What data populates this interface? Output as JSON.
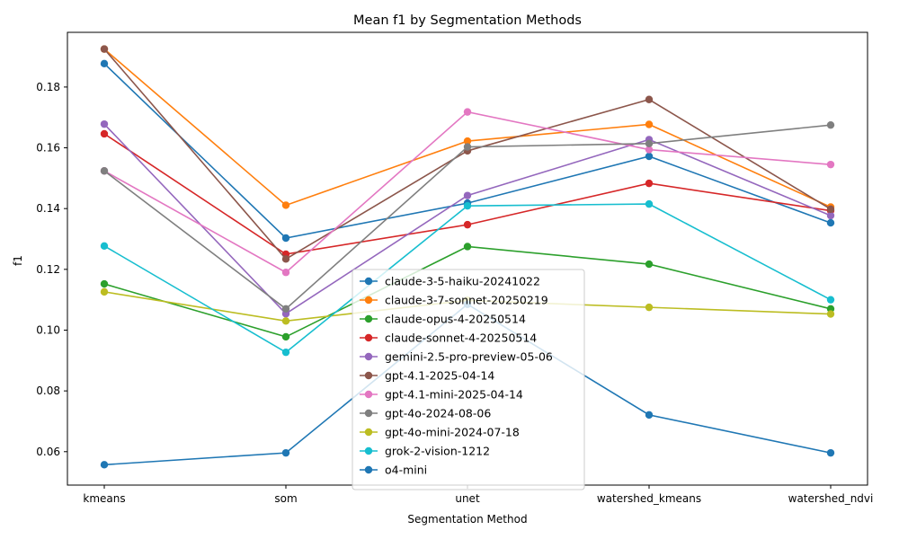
{
  "chart_data": {
    "type": "line",
    "title": "Mean f1 by Segmentation Methods",
    "xlabel": "Segmentation Method",
    "ylabel": "f1",
    "categories": [
      "kmeans",
      "som",
      "unet",
      "watershed_kmeans",
      "watershed_ndvi"
    ],
    "ylim": [
      0.049,
      0.198
    ],
    "yticks": [
      0.06,
      0.08,
      0.1,
      0.12,
      0.14,
      0.16,
      0.18
    ],
    "ytick_labels": [
      "0.06",
      "0.08",
      "0.10",
      "0.12",
      "0.14",
      "0.16",
      "0.18"
    ],
    "grid": false,
    "legend_position": "bottom-center",
    "series": [
      {
        "name": "claude-3-5-haiku-20241022",
        "color": "#1f77b4",
        "values": [
          0.1877,
          0.1303,
          0.1418,
          0.1572,
          0.1353
        ]
      },
      {
        "name": "claude-3-7-sonnet-20250219",
        "color": "#ff7f0e",
        "values": [
          0.1925,
          0.1411,
          0.1622,
          0.1677,
          0.1405
        ]
      },
      {
        "name": "claude-opus-4-20250514",
        "color": "#2ca02c",
        "values": [
          0.1152,
          0.0978,
          0.1275,
          0.1217,
          0.107
        ]
      },
      {
        "name": "claude-sonnet-4-20250514",
        "color": "#d62728",
        "values": [
          0.1646,
          0.125,
          0.1347,
          0.1483,
          0.1393
        ]
      },
      {
        "name": "gemini-2.5-pro-preview-05-06",
        "color": "#9467bd",
        "values": [
          0.1678,
          0.1054,
          0.1443,
          0.1627,
          0.1377
        ]
      },
      {
        "name": "gpt-4.1-2025-04-14",
        "color": "#8c564b",
        "values": [
          0.1925,
          0.1234,
          0.159,
          0.1759,
          0.1398
        ]
      },
      {
        "name": "gpt-4.1-mini-2025-04-14",
        "color": "#e377c2",
        "values": [
          0.1524,
          0.119,
          0.1718,
          0.1594,
          0.1545
        ]
      },
      {
        "name": "gpt-4o-2024-08-06",
        "color": "#7f7f7f",
        "values": [
          0.1524,
          0.107,
          0.1603,
          0.1614,
          0.1675
        ]
      },
      {
        "name": "gpt-4o-mini-2024-07-18",
        "color": "#bcbd22",
        "values": [
          0.1126,
          0.103,
          0.1098,
          0.1075,
          0.1053
        ]
      },
      {
        "name": "grok-2-vision-1212",
        "color": "#17becf",
        "values": [
          0.1277,
          0.0927,
          0.1409,
          0.1415,
          0.11
        ]
      },
      {
        "name": "o4-mini",
        "color": "#1f77b4",
        "values": [
          0.0557,
          0.0596,
          0.1085,
          0.0721,
          0.0596
        ]
      }
    ]
  }
}
